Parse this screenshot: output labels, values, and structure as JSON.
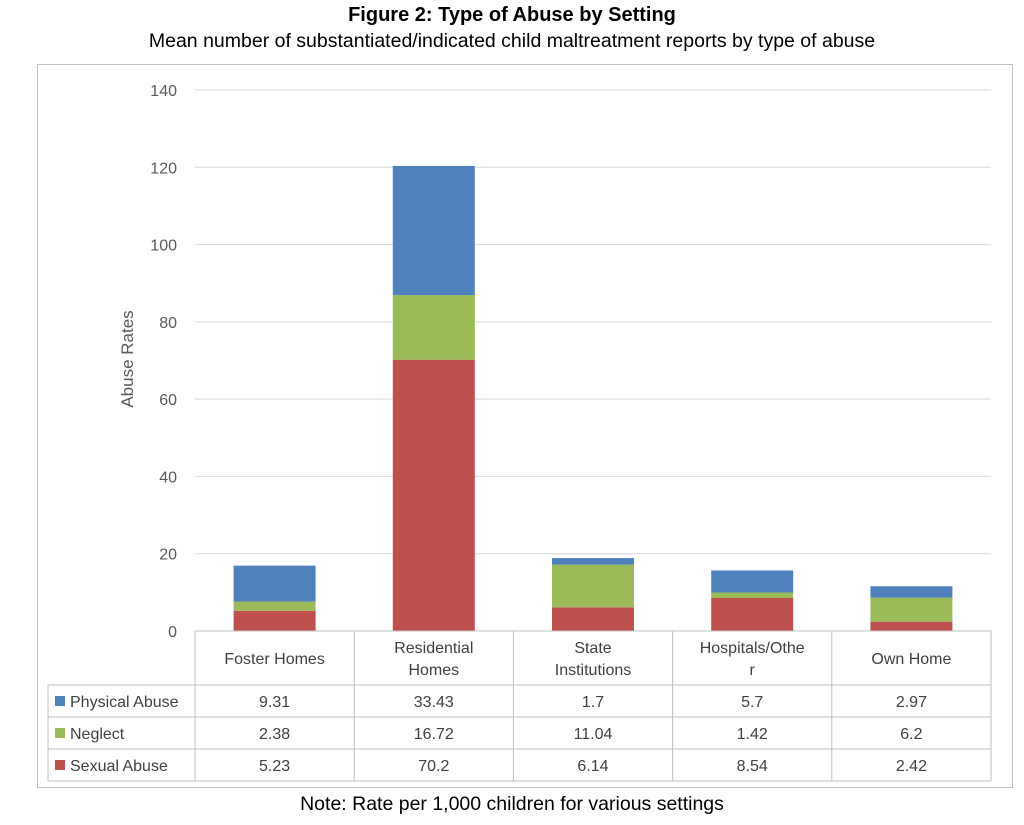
{
  "figure": {
    "title": "Figure 2: Type of Abuse by Setting",
    "subtitle": "Mean number of substantiated/indicated child maltreatment reports by type of abuse",
    "note": "Note: Rate per 1,000 children for various settings"
  },
  "chart_data": {
    "type": "bar",
    "stacked": true,
    "categories": [
      [
        "Foster Homes"
      ],
      [
        "Residential",
        "Homes"
      ],
      [
        "State",
        "Institutions"
      ],
      [
        "Hospitals/Othe",
        "r"
      ],
      [
        "Own Home"
      ]
    ],
    "series": [
      {
        "name": "Physical Abuse",
        "color": "#4f81bd",
        "values": [
          9.31,
          33.43,
          1.7,
          5.7,
          2.97
        ]
      },
      {
        "name": "Neglect",
        "color": "#9bbb59",
        "values": [
          2.38,
          16.72,
          11.04,
          1.42,
          6.2
        ]
      },
      {
        "name": "Sexual Abuse",
        "color": "#c0504d",
        "values": [
          5.23,
          70.2,
          6.14,
          8.54,
          2.42
        ]
      }
    ],
    "stack_order_bottom_to_top": [
      "Sexual Abuse",
      "Neglect",
      "Physical Abuse"
    ],
    "ylabel": "Abuse Rates",
    "xlabel": "",
    "ylim": [
      0,
      140
    ],
    "yticks": [
      0,
      20,
      40,
      60,
      80,
      100,
      120,
      140
    ],
    "grid": true,
    "legend": "data-table-left",
    "data_table": true
  }
}
